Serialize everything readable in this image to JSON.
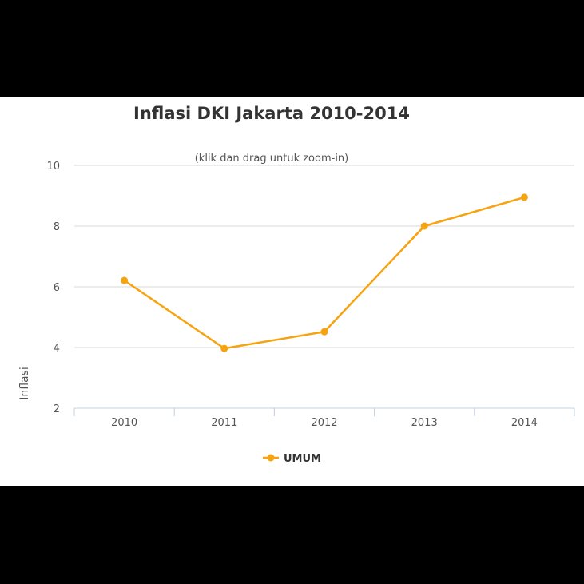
{
  "chart_data": {
    "type": "line",
    "title": "Inflasi DKI Jakarta 2010-2014",
    "subtitle": "(klik dan drag untuk zoom-in)",
    "xlabel": "",
    "ylabel": "Inflasi",
    "categories": [
      "2010",
      "2011",
      "2012",
      "2013",
      "2014"
    ],
    "ylim": [
      2,
      10
    ],
    "yticks": [
      2,
      4,
      6,
      8,
      10
    ],
    "grid": true,
    "legend_position": "bottom-center",
    "series": [
      {
        "name": "UMUM",
        "color": "#f7a30f",
        "values": [
          6.21,
          3.97,
          4.52,
          8.0,
          8.95
        ]
      }
    ]
  }
}
